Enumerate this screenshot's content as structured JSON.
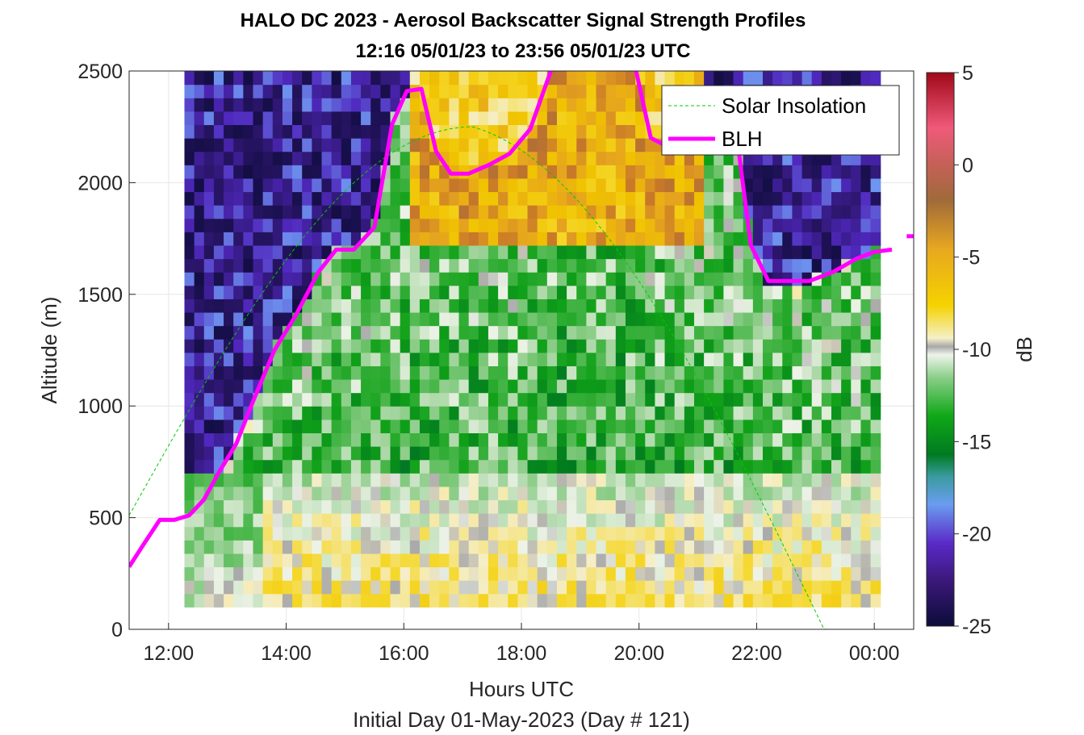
{
  "chart_data": {
    "type": "heatmap",
    "title": "HALO DC 2023 - Aerosol Backscatter Signal Strength Profiles",
    "subtitle": "12:16 05/01/23 to 23:56 05/01/23  UTC",
    "xlabel": "Hours UTC",
    "xlabel2": "Initial Day 01-May-2023 (Day # 121)",
    "ylabel": "Altitude (m)",
    "colorbar_label": "dB",
    "xlim_hours": [
      11.33,
      24.67
    ],
    "ylim": [
      0,
      2500
    ],
    "x_ticks": [
      {
        "value": 12,
        "label": "12:00"
      },
      {
        "value": 14,
        "label": "14:00"
      },
      {
        "value": 16,
        "label": "16:00"
      },
      {
        "value": 18,
        "label": "18:00"
      },
      {
        "value": 20,
        "label": "20:00"
      },
      {
        "value": 22,
        "label": "22:00"
      },
      {
        "value": 24,
        "label": "00:00"
      }
    ],
    "y_ticks": [
      0,
      500,
      1000,
      1500,
      2000,
      2500
    ],
    "colorbar_ticks": [
      5,
      0,
      -5,
      -10,
      -15,
      -20,
      -25
    ],
    "clim": [
      -25,
      5
    ],
    "grid": true,
    "legend_position": "top-right",
    "legend": [
      {
        "name": "Solar Insolation",
        "color": "#00cc00",
        "style": "dashed"
      },
      {
        "name": "BLH",
        "color": "#ff00ff",
        "style": "solid"
      }
    ],
    "blh": {
      "x": [
        11.33,
        11.55,
        11.85,
        12.1,
        12.35,
        12.6,
        12.85,
        13.15,
        13.45,
        13.8,
        14.15,
        14.55,
        14.85,
        15.15,
        15.5,
        15.8,
        16.05,
        16.3,
        16.55,
        16.8,
        17.1,
        17.45,
        17.8,
        18.15,
        18.5,
        18.7,
        18.85
      ],
      "y": [
        280,
        370,
        490,
        490,
        510,
        580,
        700,
        830,
        1030,
        1250,
        1400,
        1600,
        1700,
        1700,
        1800,
        2260,
        2410,
        2420,
        2140,
        2040,
        2040,
        2080,
        2130,
        2240,
        2500,
        2900,
        2900
      ],
      "x2": [
        19.8,
        19.95,
        20.2,
        20.5,
        20.8,
        21.1,
        21.4,
        21.7,
        21.9,
        22.2,
        22.5,
        22.9,
        23.3,
        23.7,
        24.0,
        24.3
      ],
      "y2": [
        2900,
        2500,
        2200,
        2160,
        2160,
        2200,
        2200,
        2130,
        1720,
        1560,
        1560,
        1560,
        1600,
        1660,
        1690,
        1700
      ],
      "x3": [
        24.55,
        24.67
      ],
      "y3": [
        1760,
        1760
      ]
    },
    "solar": {
      "rise": 11.33,
      "peak": 17.17,
      "set": 24.0,
      "floor_y": 0,
      "peak_y": 2250,
      "start_y": 510
    }
  }
}
